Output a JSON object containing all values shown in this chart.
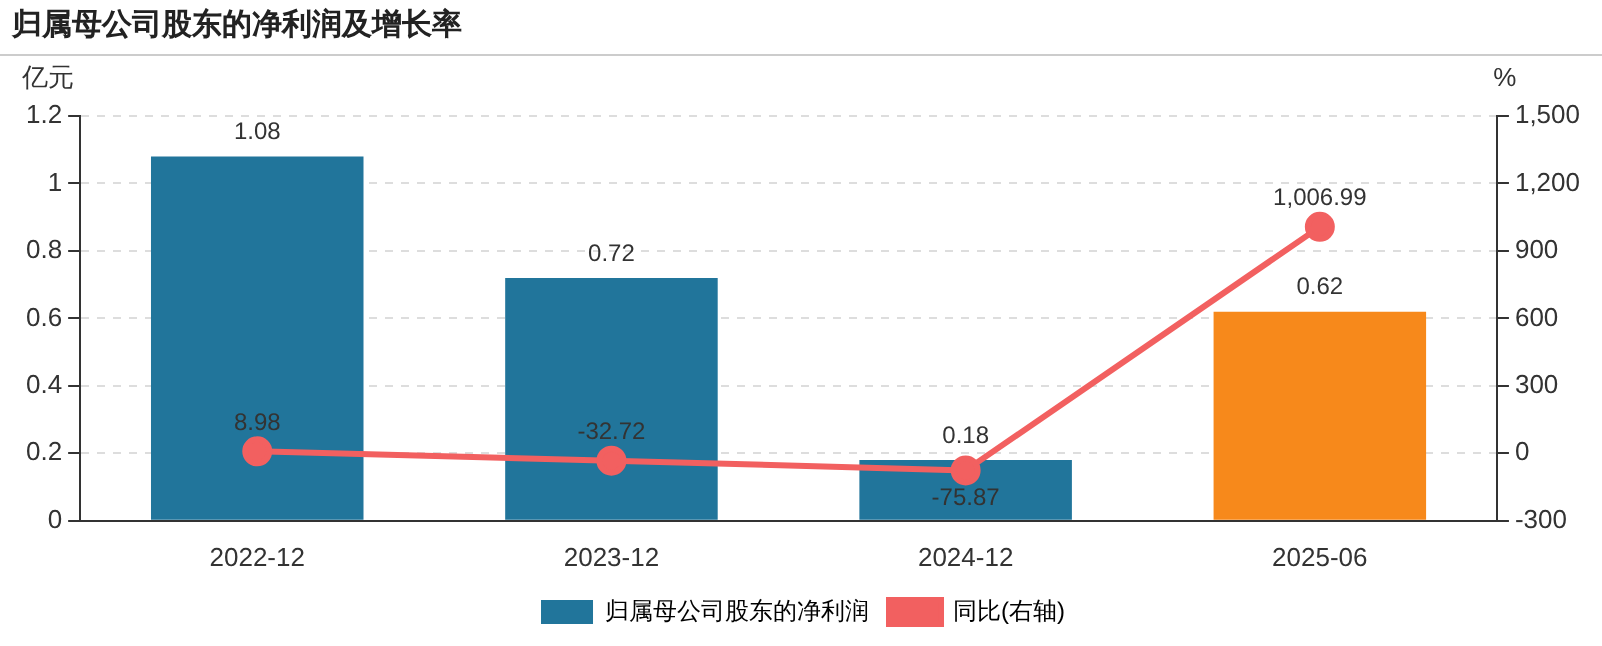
{
  "chart_data": {
    "type": "bar",
    "title": "归属母公司股东的净利润及增长率",
    "ylabel": "亿元",
    "y2label": "%",
    "categories": [
      "2022-12",
      "2023-12",
      "2024-12",
      "2025-06"
    ],
    "series": [
      {
        "name": "归属母公司股东的净利润",
        "color": "#21759b",
        "colors": [
          "#21759b",
          "#21759b",
          "#21759b",
          "#f7891b"
        ],
        "values": [
          1.08,
          0.72,
          0.18,
          0.62
        ],
        "value_labels": [
          "1.08",
          "0.72",
          "0.18",
          "0.62"
        ]
      },
      {
        "name": "同比(右轴)",
        "type": "line",
        "axis": "y2",
        "color": "#f26060",
        "values": [
          8.98,
          -32.72,
          -75.87,
          1006.99
        ],
        "value_labels": [
          "8.98",
          "-32.72",
          "-75.87",
          "1,006.99"
        ]
      }
    ],
    "ylim": [
      0,
      1.2
    ],
    "yticks": [
      0,
      0.2,
      0.4,
      0.6,
      0.8,
      1,
      1.2
    ],
    "y2lim": [
      -300,
      1500
    ],
    "y2ticks": [
      {
        "value": -300,
        "label": "-300"
      },
      0,
      300,
      600,
      900,
      {
        "value": 1200,
        "label": "1,200"
      },
      {
        "value": 1500,
        "label": "1,500"
      }
    ],
    "grid": "y",
    "legend": "bottom",
    "marker": "circle"
  }
}
